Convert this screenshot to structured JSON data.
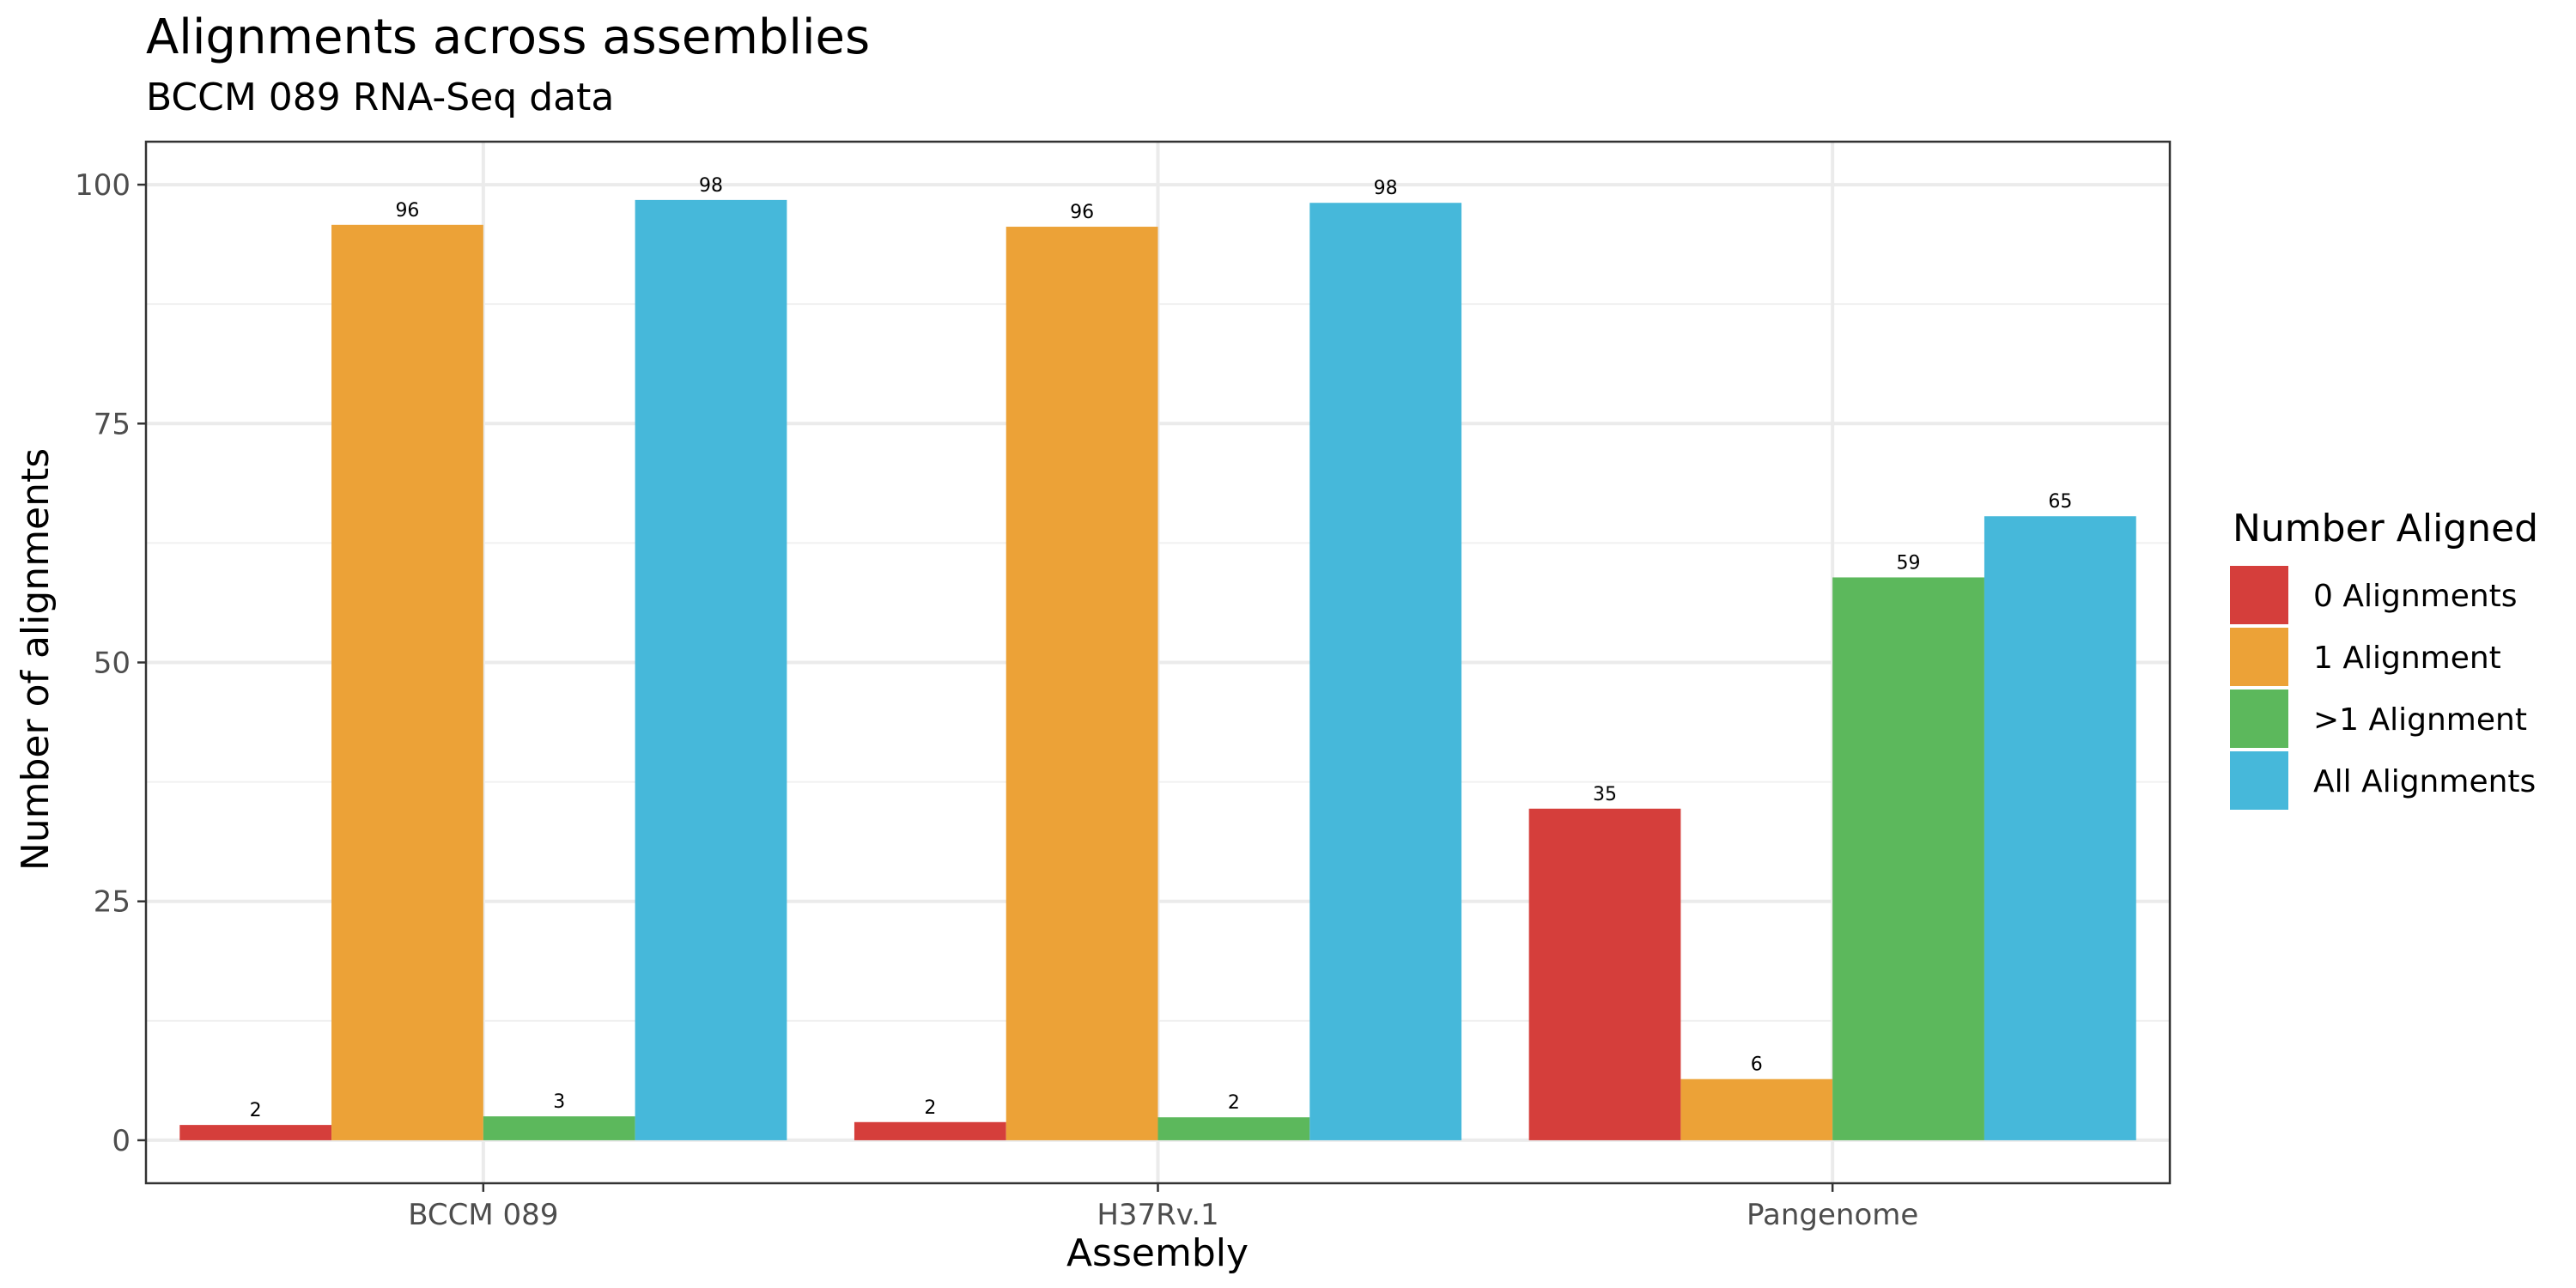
{
  "chart_data": {
    "type": "bar",
    "title": "Alignments across assemblies",
    "subtitle": "BCCM 089 RNA-Seq data",
    "xlabel": "Assembly",
    "ylabel": "Number of alignments",
    "categories": [
      "BCCM 089",
      "H37Rv.1",
      "Pangenome"
    ],
    "series": [
      {
        "name": "0 Alignments",
        "values": [
          1.6,
          1.9,
          34.7
        ],
        "labels": [
          "2",
          "2",
          "35"
        ],
        "color": "#d53e3b"
      },
      {
        "name": "1 Alignment",
        "values": [
          95.8,
          95.6,
          6.4
        ],
        "labels": [
          "96",
          "96",
          "6"
        ],
        "color": "#eca237"
      },
      {
        "name": ">1 Alignment",
        "values": [
          2.5,
          2.4,
          58.9
        ],
        "labels": [
          "3",
          "2",
          "59"
        ],
        "color": "#5cb85c"
      },
      {
        "name": "All Alignments",
        "values": [
          98.4,
          98.1,
          65.3
        ],
        "labels": [
          "98",
          "98",
          "65"
        ],
        "color": "#46b8da"
      }
    ],
    "ylim": [
      -4.5,
      104.5
    ],
    "yticks": [
      0,
      25,
      50,
      75,
      100
    ],
    "grid": true,
    "legend": {
      "title": "Number Aligned",
      "position": "right"
    }
  }
}
